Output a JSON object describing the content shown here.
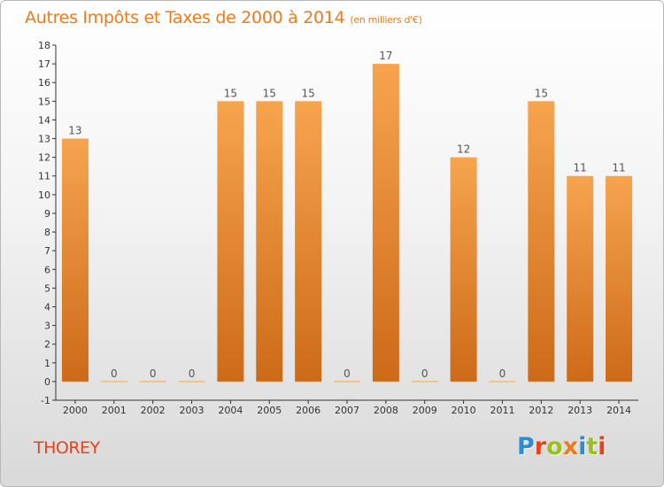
{
  "title": "Autres Impôts et Taxes de 2000 à 2014",
  "title_unit": "(en milliers d'€)",
  "commune": "THOREY",
  "logo": {
    "text": "Proxiti",
    "letters": [
      {
        "ch": "P",
        "color": "#2e8bd6"
      },
      {
        "ch": "r",
        "color": "#e8421b"
      },
      {
        "ch": "o",
        "color": "#9ac21e"
      },
      {
        "ch": "x",
        "color": "#f07a1a"
      },
      {
        "ch": "i",
        "color": "#2e8bd6"
      },
      {
        "ch": "t",
        "color": "#9ac21e"
      },
      {
        "ch": "i",
        "color": "#e8421b"
      }
    ]
  },
  "colors": {
    "bar_light": "#f7a44e",
    "bar_dark": "#cc6a18",
    "title": "#f07a1a",
    "commune": "#e8421b",
    "axis": "#333333"
  },
  "chart_data": {
    "type": "bar",
    "categories": [
      "2000",
      "2001",
      "2002",
      "2003",
      "2004",
      "2005",
      "2006",
      "2007",
      "2008",
      "2009",
      "2010",
      "2011",
      "2012",
      "2013",
      "2014"
    ],
    "values": [
      13,
      0,
      0,
      0,
      15,
      15,
      15,
      0,
      17,
      0,
      12,
      0,
      15,
      11,
      11
    ],
    "title": "Autres Impôts et Taxes de 2000 à 2014",
    "ylim": [
      -1,
      18
    ],
    "yticks": [
      -1,
      0,
      1,
      2,
      3,
      4,
      5,
      6,
      7,
      8,
      9,
      10,
      11,
      12,
      13,
      14,
      15,
      16,
      17,
      18
    ],
    "grid": false
  }
}
